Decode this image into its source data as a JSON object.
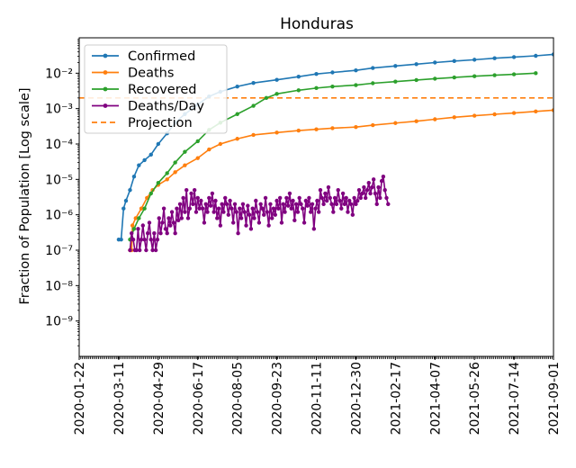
{
  "chart_data": {
    "type": "line",
    "title": "Honduras",
    "xlabel": "",
    "ylabel": "Fraction of Population [Log scale]",
    "yscale": "log",
    "ylim": [
      1e-10,
      0.1
    ],
    "xlim": [
      "2020-01-22",
      "2021-09-01"
    ],
    "x_ticks": [
      "2020-01-22",
      "2020-03-11",
      "2020-04-29",
      "2020-06-17",
      "2020-08-05",
      "2020-09-23",
      "2020-11-11",
      "2020-12-30",
      "2021-02-17",
      "2021-04-07",
      "2021-05-26",
      "2021-07-14",
      "2021-09-01"
    ],
    "y_ticks": [
      {
        "value": 1e-09,
        "label": "10⁻⁹"
      },
      {
        "value": 1e-08,
        "label": "10⁻⁸"
      },
      {
        "value": 1e-07,
        "label": "10⁻⁷"
      },
      {
        "value": 1e-06,
        "label": "10⁻⁶"
      },
      {
        "value": 1e-05,
        "label": "10⁻⁵"
      },
      {
        "value": 0.0001,
        "label": "10⁻⁴"
      },
      {
        "value": 0.001,
        "label": "10⁻³"
      },
      {
        "value": 0.01,
        "label": "10⁻²"
      }
    ],
    "legend_position": "top-left",
    "series": [
      {
        "name": "Confirmed",
        "color": "#1f77b4",
        "marker": "dot",
        "points": [
          [
            "2020-03-11",
            2e-07
          ],
          [
            "2020-03-14",
            2e-07
          ],
          [
            "2020-03-17",
            1.5e-06
          ],
          [
            "2020-03-20",
            2.5e-06
          ],
          [
            "2020-03-25",
            5e-06
          ],
          [
            "2020-03-30",
            1.2e-05
          ],
          [
            "2020-04-05",
            2.5e-05
          ],
          [
            "2020-04-12",
            3.5e-05
          ],
          [
            "2020-04-20",
            5e-05
          ],
          [
            "2020-04-29",
            0.0001
          ],
          [
            "2020-05-10",
            0.0002
          ],
          [
            "2020-05-20",
            0.0004
          ],
          [
            "2020-06-01",
            0.0007
          ],
          [
            "2020-06-17",
            0.0013
          ],
          [
            "2020-07-01",
            0.0022
          ],
          [
            "2020-07-15",
            0.003
          ],
          [
            "2020-08-05",
            0.0042
          ],
          [
            "2020-08-25",
            0.0053
          ],
          [
            "2020-09-23",
            0.0065
          ],
          [
            "2020-10-20",
            0.008
          ],
          [
            "2020-11-11",
            0.0095
          ],
          [
            "2020-12-01",
            0.0105
          ],
          [
            "2020-12-30",
            0.012
          ],
          [
            "2021-01-20",
            0.014
          ],
          [
            "2021-02-17",
            0.016
          ],
          [
            "2021-03-15",
            0.018
          ],
          [
            "2021-04-07",
            0.02
          ],
          [
            "2021-05-01",
            0.022
          ],
          [
            "2021-05-26",
            0.024
          ],
          [
            "2021-06-20",
            0.0265
          ],
          [
            "2021-07-14",
            0.0285
          ],
          [
            "2021-08-10",
            0.031
          ],
          [
            "2021-09-01",
            0.034
          ]
        ]
      },
      {
        "name": "Deaths",
        "color": "#ff7f0e",
        "marker": "dot",
        "points": [
          [
            "2020-03-25",
            1e-07
          ],
          [
            "2020-03-27",
            1e-07
          ],
          [
            "2020-03-28",
            5e-07
          ],
          [
            "2020-04-01",
            8e-07
          ],
          [
            "2020-04-08",
            1.5e-06
          ],
          [
            "2020-04-15",
            3e-06
          ],
          [
            "2020-04-22",
            5e-06
          ],
          [
            "2020-04-29",
            7e-06
          ],
          [
            "2020-05-10",
            1e-05
          ],
          [
            "2020-05-20",
            1.6e-05
          ],
          [
            "2020-06-01",
            2.5e-05
          ],
          [
            "2020-06-17",
            4e-05
          ],
          [
            "2020-07-01",
            7e-05
          ],
          [
            "2020-07-15",
            0.0001
          ],
          [
            "2020-08-05",
            0.00014
          ],
          [
            "2020-08-25",
            0.00018
          ],
          [
            "2020-09-23",
            0.00021
          ],
          [
            "2020-10-20",
            0.00024
          ],
          [
            "2020-11-11",
            0.00026
          ],
          [
            "2020-12-01",
            0.00028
          ],
          [
            "2020-12-30",
            0.0003
          ],
          [
            "2021-01-20",
            0.00034
          ],
          [
            "2021-02-17",
            0.00039
          ],
          [
            "2021-03-15",
            0.00044
          ],
          [
            "2021-04-07",
            0.0005
          ],
          [
            "2021-05-01",
            0.00057
          ],
          [
            "2021-05-26",
            0.00063
          ],
          [
            "2021-06-20",
            0.00069
          ],
          [
            "2021-07-14",
            0.00075
          ],
          [
            "2021-08-10",
            0.00083
          ],
          [
            "2021-09-01",
            0.0009
          ]
        ]
      },
      {
        "name": "Recovered",
        "color": "#2ca02c",
        "marker": "dot",
        "points": [
          [
            "2020-03-25",
            2e-07
          ],
          [
            "2020-03-30",
            4e-07
          ],
          [
            "2020-04-05",
            8e-07
          ],
          [
            "2020-04-12",
            1.5e-06
          ],
          [
            "2020-04-20",
            4e-06
          ],
          [
            "2020-04-29",
            8e-06
          ],
          [
            "2020-05-10",
            1.5e-05
          ],
          [
            "2020-05-20",
            3e-05
          ],
          [
            "2020-06-01",
            6e-05
          ],
          [
            "2020-06-17",
            0.00012
          ],
          [
            "2020-07-01",
            0.00025
          ],
          [
            "2020-07-15",
            0.0004
          ],
          [
            "2020-08-05",
            0.0007
          ],
          [
            "2020-08-25",
            0.0012
          ],
          [
            "2020-09-10",
            0.002
          ],
          [
            "2020-09-23",
            0.0026
          ],
          [
            "2020-10-20",
            0.0033
          ],
          [
            "2020-11-11",
            0.0038
          ],
          [
            "2020-12-01",
            0.0042
          ],
          [
            "2020-12-30",
            0.0046
          ],
          [
            "2021-01-20",
            0.0052
          ],
          [
            "2021-02-17",
            0.0058
          ],
          [
            "2021-03-15",
            0.0064
          ],
          [
            "2021-04-07",
            0.007
          ],
          [
            "2021-05-01",
            0.0076
          ],
          [
            "2021-05-26",
            0.0082
          ],
          [
            "2021-06-20",
            0.0088
          ],
          [
            "2021-07-14",
            0.0093
          ],
          [
            "2021-08-10",
            0.01
          ]
        ]
      },
      {
        "name": "Deaths/Day",
        "color": "#800080",
        "marker": "dot",
        "start": "2020-03-25",
        "step_days": 2,
        "values": [
          1e-07,
          3e-07,
          2e-07,
          1e-07,
          1e-07,
          4e-07,
          1e-07,
          2e-07,
          5e-07,
          2e-07,
          1e-07,
          3e-07,
          6e-07,
          2e-07,
          1e-07,
          3e-07,
          1e-07,
          2e-07,
          8e-07,
          3e-07,
          6e-07,
          1.5e-06,
          4e-07,
          3e-07,
          8e-07,
          5e-07,
          1.2e-06,
          6e-07,
          3e-07,
          1.5e-06,
          7e-07,
          2e-06,
          8e-07,
          3e-06,
          1.2e-06,
          5e-06,
          8e-07,
          1.5e-06,
          4e-06,
          2e-06,
          5e-06,
          1.2e-06,
          3e-06,
          1.5e-06,
          2.5e-06,
          1.5e-06,
          6e-07,
          2e-06,
          1.2e-06,
          3e-06,
          1.8e-06,
          4e-06,
          1.2e-06,
          2.5e-06,
          8e-07,
          1.5e-06,
          5e-07,
          2e-06,
          1.2e-06,
          3e-06,
          2e-06,
          1e-06,
          2.5e-06,
          1.5e-06,
          6e-07,
          2e-06,
          1.2e-06,
          3e-07,
          1.5e-06,
          8e-07,
          2e-06,
          1.2e-06,
          5e-07,
          1.8e-06,
          1e-06,
          4e-07,
          1.5e-06,
          8e-07,
          2.5e-06,
          1.2e-06,
          6e-07,
          2e-06,
          1.5e-06,
          1e-06,
          3e-06,
          1.2e-06,
          5e-07,
          2e-06,
          8e-07,
          1.5e-06,
          1e-06,
          2.5e-06,
          1.5e-06,
          3e-06,
          6e-07,
          2e-06,
          1.2e-06,
          3e-06,
          1.8e-06,
          4e-06,
          1.5e-06,
          2.5e-06,
          7e-07,
          2e-06,
          1.2e-06,
          3e-06,
          2e-06,
          1.5e-06,
          6e-07,
          2.5e-06,
          1.8e-06,
          3e-06,
          1.2e-06,
          2e-06,
          4e-07,
          1.5e-06,
          2.5e-06,
          1.2e-06,
          5e-06,
          3e-06,
          2e-06,
          4e-06,
          2.5e-06,
          6e-06,
          3e-06,
          2e-06,
          1.2e-06,
          3e-06,
          2e-06,
          5e-06,
          2.5e-06,
          1.5e-06,
          4e-06,
          2e-06,
          3e-06,
          1.2e-06,
          2.5e-06,
          2e-06,
          1e-06,
          3e-06,
          2e-06,
          2.5e-06,
          5e-06,
          3e-06,
          4e-06,
          6e-06,
          3e-06,
          5e-06,
          8e-06,
          4e-06,
          6e-06,
          1e-05,
          4e-06,
          2e-06,
          6e-06,
          3e-06,
          9e-06,
          1.2e-05,
          5e-06,
          3e-06,
          2e-06
        ]
      }
    ],
    "projection": {
      "name": "Projection",
      "value": 0.002,
      "color": "#ff7f0e",
      "style": "dashed"
    }
  }
}
